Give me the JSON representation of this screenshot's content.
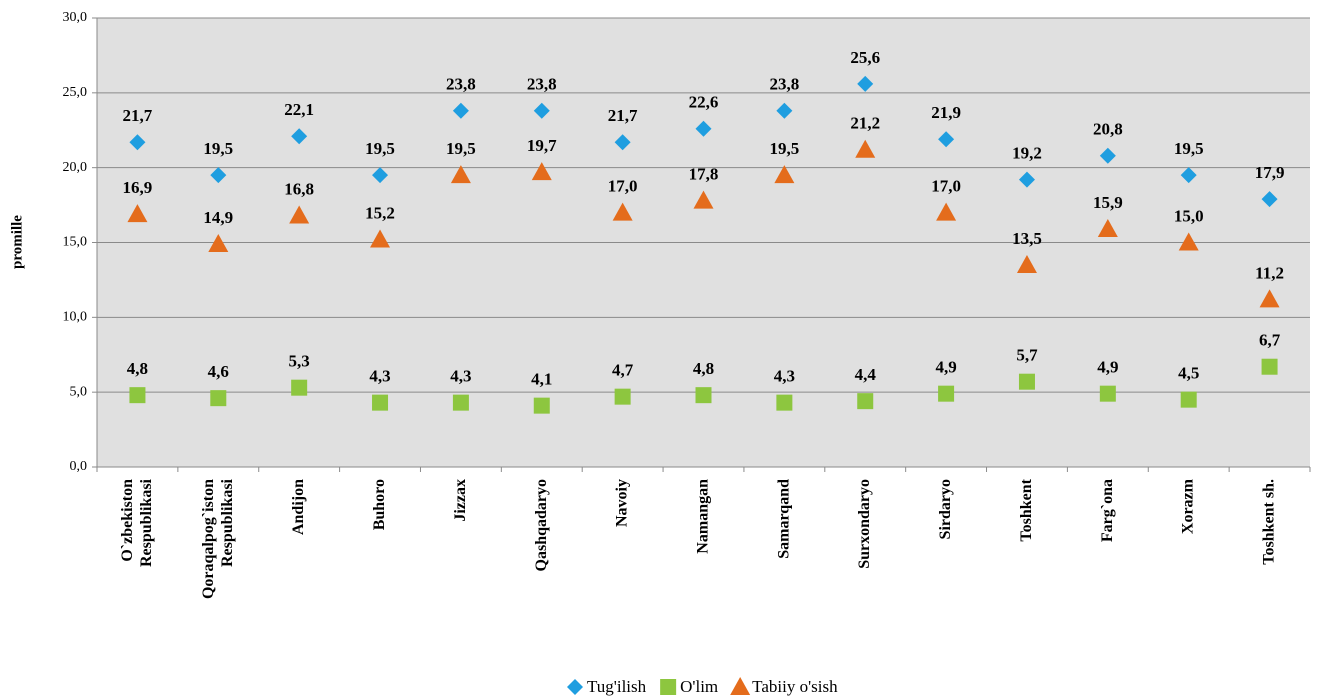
{
  "chart_data": {
    "type": "scatter",
    "categories": [
      "O`zbekiston\nRespublikasi",
      "Qoraqalpog`iston\nRespublikasi",
      "Andijon",
      "Buhoro",
      "Jizzax",
      "Qashqadaryo",
      "Navoiy",
      "Namangan",
      "Samarqand",
      "Surxondaryo",
      "Sirdaryo",
      "Toshkent",
      "Farg`ona",
      "Xorazm",
      "Toshkent sh."
    ],
    "y_label": "promille",
    "ylim": [
      0,
      30
    ],
    "yticks": [
      {
        "value": 0,
        "label": "0,0"
      },
      {
        "value": 5,
        "label": "5,0"
      },
      {
        "value": 10,
        "label": "10,0"
      },
      {
        "value": 15,
        "label": "15,0"
      },
      {
        "value": 20,
        "label": "20,0"
      },
      {
        "value": 25,
        "label": "25,0"
      },
      {
        "value": 30,
        "label": "30,0"
      }
    ],
    "grid": true,
    "legend": "bottom",
    "series": [
      {
        "name": "Tug'ilish",
        "color": "#1f9ee0",
        "marker": "diamond",
        "values": [
          21.7,
          19.5,
          22.1,
          19.5,
          23.8,
          23.8,
          21.7,
          22.6,
          23.8,
          25.6,
          21.9,
          19.2,
          20.8,
          19.5,
          17.9
        ],
        "value_labels": [
          "21,7",
          "19,5",
          "22,1",
          "19,5",
          "23,8",
          "23,8",
          "21,7",
          "22,6",
          "23,8",
          "25,6",
          "21,9",
          "19,2",
          "20,8",
          "19,5",
          "17,9"
        ]
      },
      {
        "name": "O'lim",
        "color": "#8dc63f",
        "marker": "square",
        "values": [
          4.8,
          4.6,
          5.3,
          4.3,
          4.3,
          4.1,
          4.7,
          4.8,
          4.3,
          4.4,
          4.9,
          5.7,
          4.9,
          4.5,
          6.7
        ],
        "value_labels": [
          "4,8",
          "4,6",
          "5,3",
          "4,3",
          "4,3",
          "4,1",
          "4,7",
          "4,8",
          "4,3",
          "4,4",
          "4,9",
          "5,7",
          "4,9",
          "4,5",
          "6,7"
        ]
      },
      {
        "name": "Tabiiy o'sish",
        "color": "#e46c1c",
        "marker": "triangle",
        "values": [
          16.9,
          14.9,
          16.8,
          15.2,
          19.5,
          19.7,
          17.0,
          17.8,
          19.5,
          21.2,
          17.0,
          13.5,
          15.9,
          15.0,
          11.2
        ],
        "value_labels": [
          "16,9",
          "14,9",
          "16,8",
          "15,2",
          "19,5",
          "19,7",
          "17,0",
          "17,8",
          "19,5",
          "21,2",
          "17,0",
          "13,5",
          "15,9",
          "15,0",
          "11,2"
        ]
      }
    ]
  }
}
